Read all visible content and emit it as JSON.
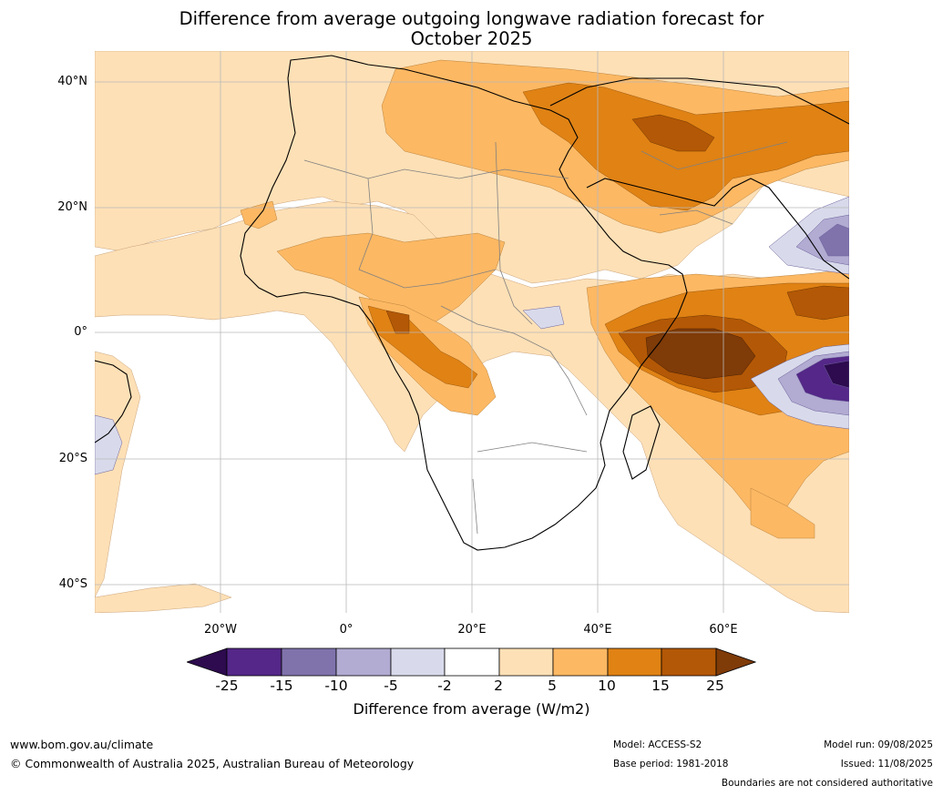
{
  "title_line1": "Difference from average outgoing longwave radiation forecast for",
  "title_line2": "October 2025",
  "lat_labels": [
    "40°N",
    "20°N",
    "0°",
    "20°S",
    "40°S"
  ],
  "lon_labels": [
    "20°W",
    "0°",
    "20°E",
    "40°E",
    "60°E"
  ],
  "colorbar": {
    "ticks": [
      "-25",
      "-15",
      "-10",
      "-5",
      "-2",
      "2",
      "5",
      "10",
      "15",
      "25"
    ],
    "colors": [
      "#2d0b4e",
      "#542788",
      "#8073ac",
      "#b2abd2",
      "#d8daeb",
      "#ffffff",
      "#fee0b6",
      "#fdb863",
      "#e08214",
      "#b35806",
      "#7f3b08"
    ],
    "label": "Difference from average (W/m2)"
  },
  "footer": {
    "url": "www.bom.gov.au/climate",
    "copyright": "© Commonwealth of Australia 2025, Australian Bureau of Meteorology",
    "model": "Model: ACCESS-S2",
    "base_period": "Base period: 1981-2018",
    "model_run": "Model run: 09/08/2025",
    "issued": "Issued: 11/08/2025",
    "disclaimer": "Boundaries are not considered authoritative"
  }
}
